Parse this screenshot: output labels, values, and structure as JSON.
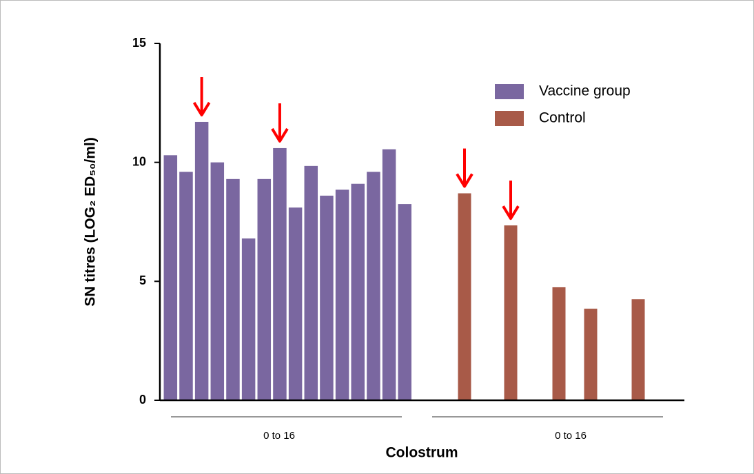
{
  "chart_data": {
    "type": "bar",
    "ylabel": "SN titres (LOG₂ ED₅₀/ml)",
    "xlabel": "Colostrum",
    "group_labels": [
      "0 to 16",
      "0 to 16"
    ],
    "categories": [
      null,
      null,
      null,
      null,
      null,
      null,
      null,
      null,
      null,
      null,
      null,
      null,
      null,
      null,
      null,
      null,
      null,
      null,
      null,
      null,
      null
    ],
    "series": [
      {
        "name": "Vaccine group",
        "color": "#7a67a0",
        "values": [
          10.3,
          9.6,
          11.7,
          10.0,
          9.3,
          6.8,
          9.3,
          10.6,
          8.1,
          9.85,
          8.6,
          8.85,
          9.1,
          9.6,
          10.55,
          8.25,
          null,
          null,
          null,
          null,
          null
        ]
      },
      {
        "name": "Control",
        "color": "#a85a48",
        "values": [
          null,
          null,
          null,
          null,
          null,
          null,
          null,
          null,
          null,
          null,
          null,
          null,
          null,
          null,
          null,
          null,
          8.7,
          7.35,
          4.75,
          3.85,
          4.25
        ]
      }
    ],
    "arrows": [
      {
        "series": 0,
        "index": 2
      },
      {
        "series": 0,
        "index": 7
      },
      {
        "series": 1,
        "index": 16
      },
      {
        "series": 1,
        "index": 17
      }
    ],
    "arrow_color": "#ff0000",
    "ylim": [
      0,
      15
    ],
    "yticks": [
      0,
      5,
      10,
      15
    ],
    "legend": "upper right",
    "grid": false
  }
}
